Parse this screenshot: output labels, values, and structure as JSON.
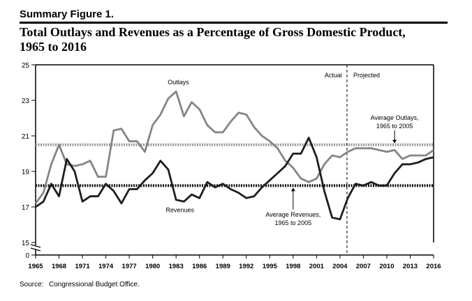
{
  "figure_label": "Summary Figure 1.",
  "title_line1": "Total Outlays and Revenues as a Percentage of Gross Domestic Product,",
  "title_line2": "1965 to 2016",
  "source_label": "Source:",
  "source_text": "Congressional Budget Office.",
  "colors": {
    "outlays": "#858585",
    "revenues": "#1e1e1e",
    "axis": "#000000"
  },
  "chart_data": {
    "type": "line",
    "x_ticks": [
      1965,
      1968,
      1971,
      1974,
      1977,
      1980,
      1983,
      1986,
      1989,
      1992,
      1995,
      1998,
      2001,
      2004,
      2007,
      2010,
      2013,
      2016
    ],
    "y_ticks": [
      15,
      17,
      19,
      21,
      23,
      25
    ],
    "y_zero_label": "0",
    "xlim": [
      1965,
      2016
    ],
    "ylim": [
      15,
      25
    ],
    "axis_break": true,
    "grid": false,
    "series": [
      {
        "name": "Outlays",
        "x": [
          1965,
          1966,
          1967,
          1968,
          1969,
          1970,
          1971,
          1972,
          1973,
          1974,
          1975,
          1976,
          1977,
          1978,
          1979,
          1980,
          1981,
          1982,
          1983,
          1984,
          1985,
          1986,
          1987,
          1988,
          1989,
          1990,
          1991,
          1992,
          1993,
          1994,
          1995,
          1996,
          1997,
          1998,
          1999,
          2000,
          2001,
          2002,
          2003,
          2004,
          2005,
          2006,
          2007,
          2008,
          2009,
          2010,
          2011,
          2012,
          2013,
          2014,
          2015,
          2016
        ],
        "values": [
          17.2,
          17.8,
          19.4,
          20.5,
          19.4,
          19.3,
          19.4,
          19.6,
          18.7,
          18.7,
          21.3,
          21.4,
          20.7,
          20.7,
          20.1,
          21.6,
          22.2,
          23.1,
          23.5,
          22.1,
          22.9,
          22.5,
          21.6,
          21.2,
          21.2,
          21.8,
          22.3,
          22.2,
          21.5,
          21.0,
          20.7,
          20.3,
          19.6,
          19.2,
          18.6,
          18.4,
          18.6,
          19.4,
          19.9,
          19.8,
          20.1,
          20.3,
          20.3,
          20.3,
          20.2,
          20.1,
          20.2,
          19.7,
          19.9,
          19.9,
          19.9,
          20.2
        ]
      },
      {
        "name": "Revenues",
        "x": [
          1965,
          1966,
          1967,
          1968,
          1969,
          1970,
          1971,
          1972,
          1973,
          1974,
          1975,
          1976,
          1977,
          1978,
          1979,
          1980,
          1981,
          1982,
          1983,
          1984,
          1985,
          1986,
          1987,
          1988,
          1989,
          1990,
          1991,
          1992,
          1993,
          1994,
          1995,
          1996,
          1997,
          1998,
          1999,
          2000,
          2001,
          2002,
          2003,
          2004,
          2005,
          2006,
          2007,
          2008,
          2009,
          2010,
          2011,
          2012,
          2013,
          2014,
          2015,
          2016
        ],
        "values": [
          17.0,
          17.3,
          18.3,
          17.6,
          19.7,
          19.0,
          17.3,
          17.6,
          17.6,
          18.3,
          17.9,
          17.2,
          18.0,
          18.0,
          18.5,
          18.9,
          19.6,
          19.1,
          17.4,
          17.3,
          17.7,
          17.5,
          18.4,
          18.1,
          18.3,
          18.0,
          17.8,
          17.5,
          17.6,
          18.1,
          18.5,
          18.9,
          19.3,
          20.0,
          20.0,
          20.9,
          19.8,
          17.9,
          16.4,
          16.3,
          17.5,
          18.3,
          18.2,
          18.4,
          18.2,
          18.2,
          18.9,
          19.4,
          19.4,
          19.5,
          19.7,
          19.8
        ]
      }
    ],
    "reference_lines": [
      {
        "name": "Average Outlays, 1965 to 2005",
        "value": 20.5
      },
      {
        "name": "Average Revenues, 1965 to 2005",
        "value": 18.2
      }
    ],
    "divider_year": 2004.9,
    "annotations": {
      "outlays_label": "Outlays",
      "revenues_label": "Revenues",
      "actual": "Actual",
      "projected": "Projected",
      "avg_outlays_line1": "Average Outlays,",
      "avg_outlays_line2": "1965 to 2005",
      "avg_revenues_line1": "Average Revenues,",
      "avg_revenues_line2": "1965 to 2005"
    }
  }
}
